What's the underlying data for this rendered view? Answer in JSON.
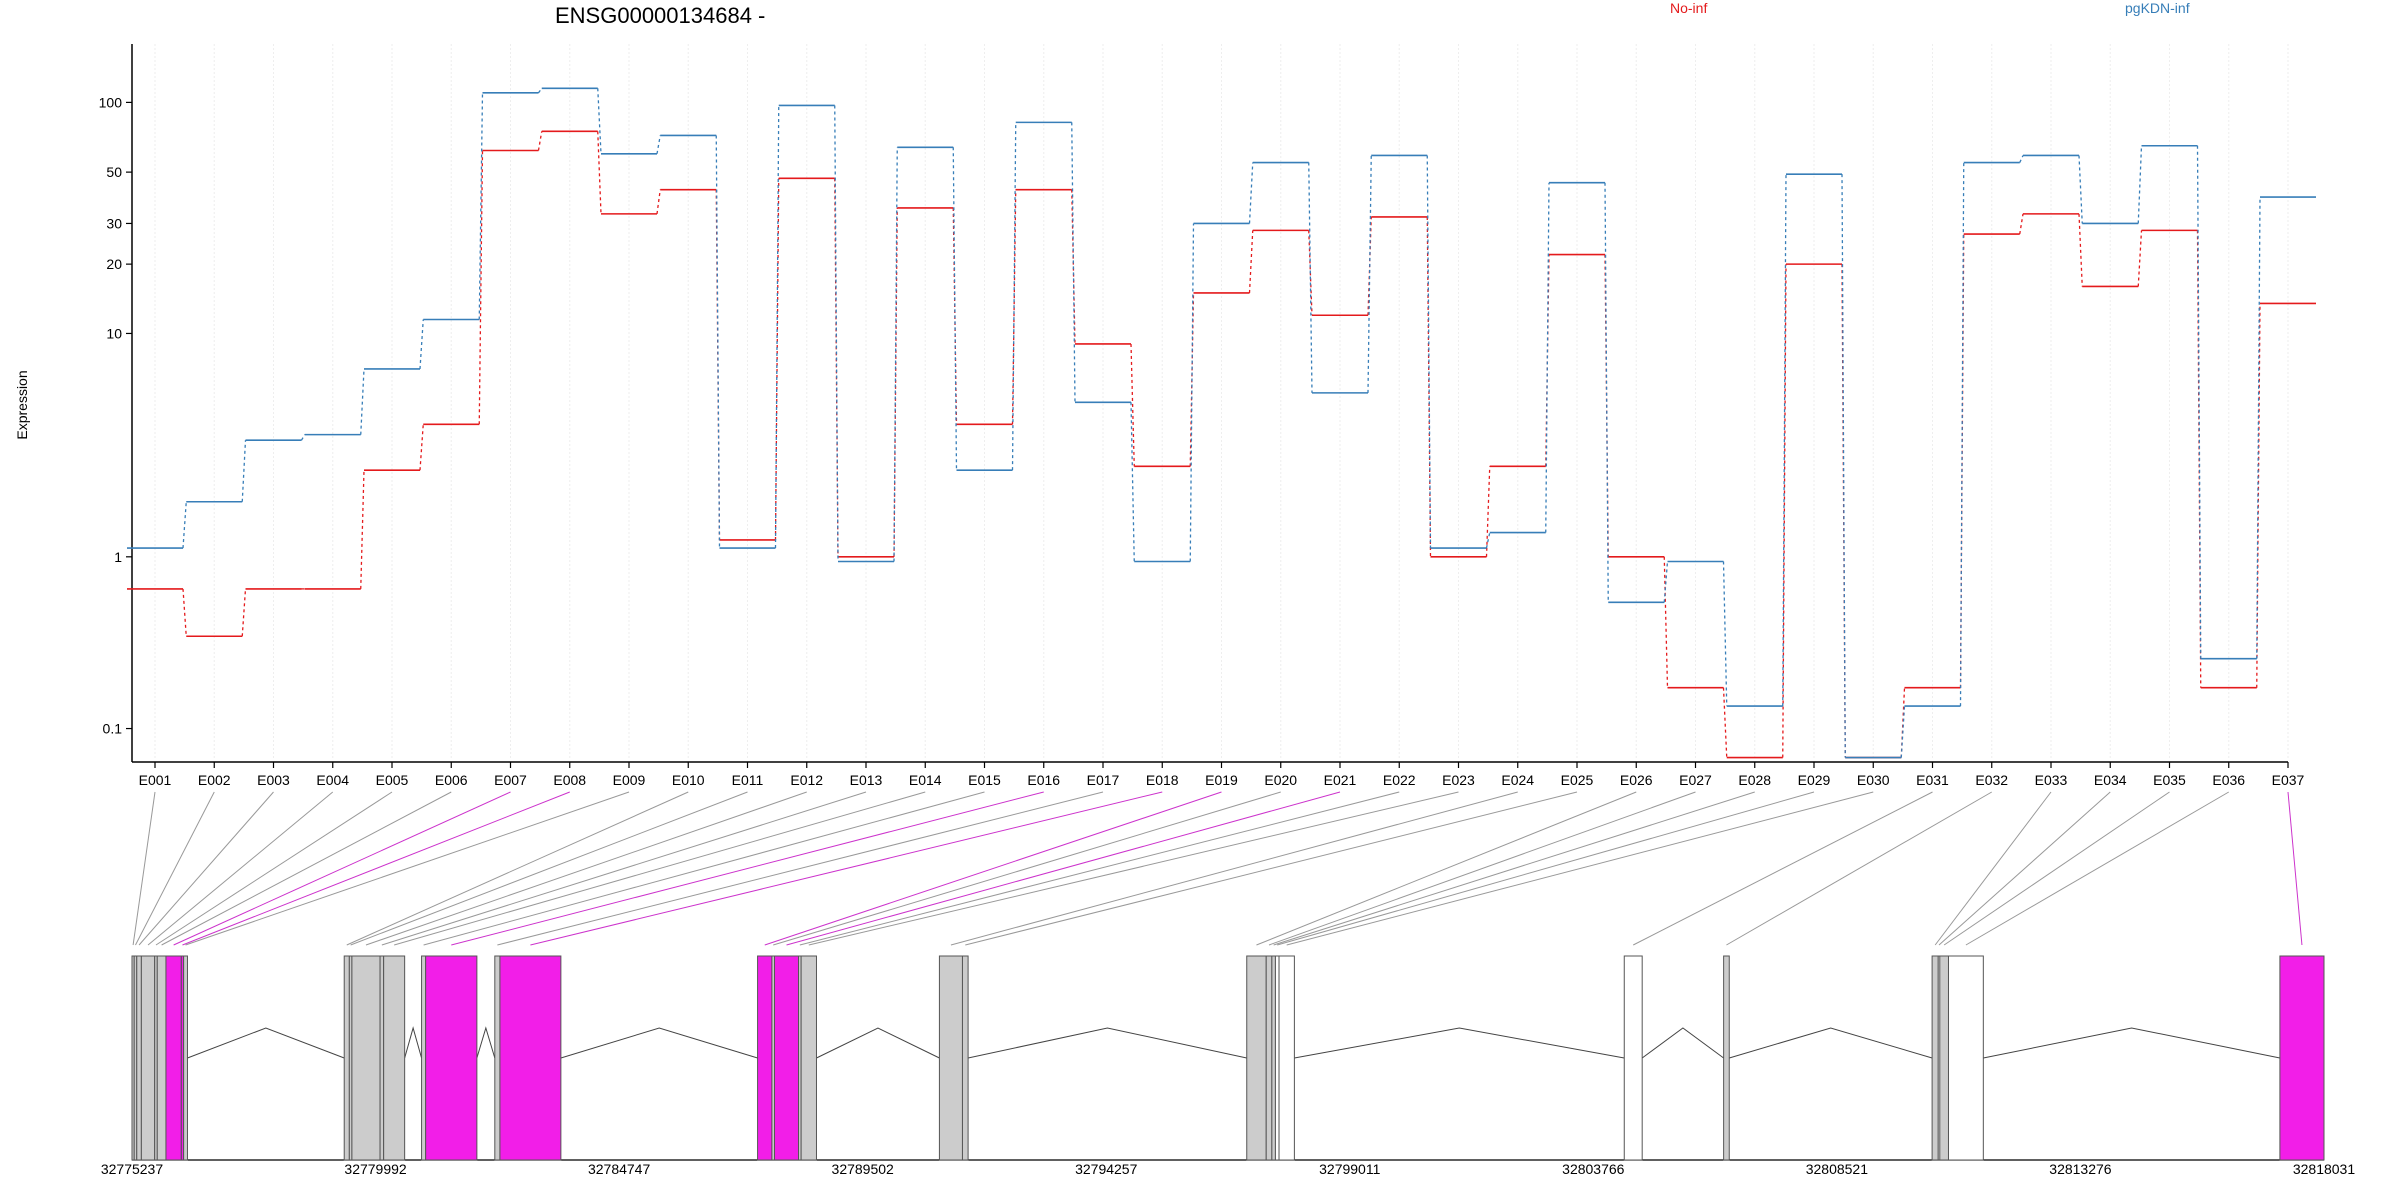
{
  "chart_data": {
    "type": "line",
    "title": "ENSG00000134684 -",
    "ylabel": "Expression",
    "y_scale": "log(x+0.1)",
    "y_ticks": [
      0.1,
      1,
      10,
      20,
      30,
      50,
      100
    ],
    "y_tick_labels": [
      "0.1",
      "1",
      "10",
      "20",
      "30",
      "50",
      "100"
    ],
    "ylim": [
      0.075,
      145
    ],
    "grid": "vertical gridlines at each exon",
    "legend": [
      {
        "name": "No-inf",
        "color": "#e41a1c",
        "position": "top"
      },
      {
        "name": "pgKDN-inf",
        "color": "#377eb8",
        "position": "top-right"
      }
    ],
    "categories": [
      "E001",
      "E002",
      "E003",
      "E004",
      "E005",
      "E006",
      "E007",
      "E008",
      "E009",
      "E010",
      "E011",
      "E012",
      "E013",
      "E014",
      "E015",
      "E016",
      "E017",
      "E018",
      "E019",
      "E020",
      "E021",
      "E022",
      "E023",
      "E024",
      "E025",
      "E026",
      "E027",
      "E028",
      "E029",
      "E030",
      "E031",
      "E032",
      "E033",
      "E034",
      "E035",
      "E036",
      "E037"
    ],
    "series": [
      {
        "name": "No-inf",
        "color": "#e41a1c",
        "values": [
          0.7,
          0.4,
          0.7,
          0.7,
          2.5,
          4.0,
          62,
          75,
          33,
          42,
          1.2,
          47,
          1.0,
          35,
          4.0,
          42,
          9.0,
          2.6,
          15,
          28,
          12,
          32,
          1.0,
          2.6,
          22,
          1.0,
          0.2,
          0.05,
          20,
          0.05,
          0.2,
          27,
          33,
          16,
          28,
          0.2,
          13.5
        ]
      },
      {
        "name": "pgKDN-inf",
        "color": "#377eb8",
        "values": [
          1.1,
          1.8,
          3.4,
          3.6,
          7.0,
          11.5,
          110,
          115,
          60,
          72,
          1.1,
          97,
          0.95,
          64,
          2.5,
          82,
          5.0,
          0.95,
          30,
          55,
          5.5,
          59,
          1.1,
          1.3,
          45,
          0.6,
          0.95,
          0.15,
          49,
          0.05,
          0.15,
          55,
          59,
          30,
          65,
          0.3,
          39
        ]
      }
    ],
    "gene_model": {
      "coordinate_labels": [
        "32775237",
        "32779992",
        "32784747",
        "32789502",
        "32794257",
        "32799011",
        "32803766",
        "32808521",
        "32813276",
        "32818031"
      ],
      "coordinate_values": [
        32775237,
        32779992,
        32784747,
        32789502,
        32794257,
        32799011,
        32803766,
        32808521,
        32813276,
        32818031
      ],
      "colors": {
        "significant": "#f21ee8",
        "tested": "#cccccc",
        "untested": "#ffffff"
      },
      "exons": [
        {
          "id": "E001",
          "start": 32775237,
          "end": 32775280,
          "status": "tested"
        },
        {
          "id": "E002",
          "start": 32775280,
          "end": 32775330,
          "status": "tested"
        },
        {
          "id": "E003",
          "start": 32775330,
          "end": 32775420,
          "status": "tested"
        },
        {
          "id": "E004",
          "start": 32775420,
          "end": 32775680,
          "status": "tested"
        },
        {
          "id": "E005",
          "start": 32775680,
          "end": 32775730,
          "status": "tested"
        },
        {
          "id": "E006",
          "start": 32775730,
          "end": 32775900,
          "status": "tested"
        },
        {
          "id": "E007",
          "start": 32775900,
          "end": 32776200,
          "status": "significant"
        },
        {
          "id": "E008",
          "start": 32776200,
          "end": 32776245,
          "status": "significant"
        },
        {
          "id": "E009",
          "start": 32776245,
          "end": 32776320,
          "status": "tested"
        },
        {
          "id": "E010",
          "start": 32779380,
          "end": 32779480,
          "status": "tested"
        },
        {
          "id": "E011",
          "start": 32779480,
          "end": 32779530,
          "status": "tested"
        },
        {
          "id": "E012",
          "start": 32779530,
          "end": 32780080,
          "status": "tested"
        },
        {
          "id": "E013",
          "start": 32780080,
          "end": 32780150,
          "status": "tested"
        },
        {
          "id": "E014",
          "start": 32780150,
          "end": 32780560,
          "status": "tested"
        },
        {
          "id": "E015",
          "start": 32780890,
          "end": 32780970,
          "status": "tested"
        },
        {
          "id": "E016",
          "start": 32780970,
          "end": 32781970,
          "status": "significant"
        },
        {
          "id": "E017",
          "start": 32782320,
          "end": 32782420,
          "status": "tested"
        },
        {
          "id": "E018",
          "start": 32782420,
          "end": 32783610,
          "status": "significant"
        },
        {
          "id": "E019",
          "start": 32787450,
          "end": 32787730,
          "status": "significant"
        },
        {
          "id": "E020",
          "start": 32787730,
          "end": 32787780,
          "status": "tested"
        },
        {
          "id": "E021",
          "start": 32787780,
          "end": 32788250,
          "status": "significant"
        },
        {
          "id": "E022",
          "start": 32788250,
          "end": 32788300,
          "status": "tested"
        },
        {
          "id": "E023",
          "start": 32788300,
          "end": 32788600,
          "status": "tested"
        },
        {
          "id": "E024",
          "start": 32791000,
          "end": 32791450,
          "status": "tested"
        },
        {
          "id": "E025",
          "start": 32791450,
          "end": 32791560,
          "status": "tested"
        },
        {
          "id": "E026",
          "start": 32797000,
          "end": 32797380,
          "status": "tested"
        },
        {
          "id": "E027",
          "start": 32797380,
          "end": 32797490,
          "status": "tested"
        },
        {
          "id": "E028",
          "start": 32797490,
          "end": 32797560,
          "status": "tested"
        },
        {
          "id": "E029",
          "start": 32797560,
          "end": 32797630,
          "status": "untested"
        },
        {
          "id": "E030",
          "start": 32797630,
          "end": 32797930,
          "status": "untested"
        },
        {
          "id": "E031",
          "start": 32804370,
          "end": 32804720,
          "status": "untested"
        },
        {
          "id": "E032",
          "start": 32806310,
          "end": 32806420,
          "status": "tested"
        },
        {
          "id": "E033",
          "start": 32810380,
          "end": 32810500,
          "status": "tested"
        },
        {
          "id": "E034",
          "start": 32810500,
          "end": 32810530,
          "status": "untested"
        },
        {
          "id": "E035",
          "start": 32810530,
          "end": 32810700,
          "status": "tested"
        },
        {
          "id": "E036",
          "start": 32810700,
          "end": 32811380,
          "status": "untested"
        },
        {
          "id": "E037",
          "start": 32817170,
          "end": 32818031,
          "status": "significant"
        }
      ]
    }
  }
}
